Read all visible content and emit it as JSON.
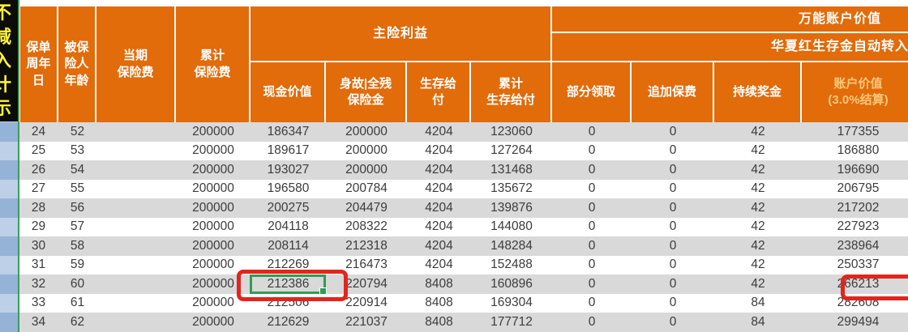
{
  "app": {
    "type": "insurance-benefit-projection-spreadsheet"
  },
  "left_strip": {
    "vertical_text": [
      "不",
      "减",
      "入",
      "计",
      "示"
    ]
  },
  "header": {
    "policy_year": "保单\n周年\n日",
    "insured_age": "被保\n险人\n年龄",
    "current_premium": "当期\n保险费",
    "cumulative_premium": "累计\n保险费",
    "main_benefit_group": "主险利益",
    "cash_value": "现金价值",
    "death_benefit": "身故|全残\n保险金",
    "survival_benefit": "生存给\n付",
    "cumulative_survival": "累计\n生存给付",
    "universal_group": "万能账户价值",
    "universal_sub": "华夏红生存金自动转入",
    "partial_withdrawal": "部分领取",
    "additional_premium": "追加保费",
    "persistency_bonus": "持续奖金",
    "account_value": "账户价值\n(3.0%结算)"
  },
  "table": {
    "columns": [
      "保单周年日",
      "被保险人年龄",
      "当期保险费",
      "累计保险费",
      "现金价值",
      "身故|全残保险金",
      "生存给付",
      "累计生存给付",
      "部分领取",
      "追加保费",
      "持续奖金",
      "账户价值(3.0%结算)"
    ],
    "rows": [
      [
        "24",
        "52",
        "",
        "200000",
        "186347",
        "200000",
        "4204",
        "123060",
        "0",
        "0",
        "42",
        "177355"
      ],
      [
        "25",
        "53",
        "",
        "200000",
        "189617",
        "200000",
        "4204",
        "127264",
        "0",
        "0",
        "42",
        "186880"
      ],
      [
        "26",
        "54",
        "",
        "200000",
        "193027",
        "200000",
        "4204",
        "131468",
        "0",
        "0",
        "42",
        "196690"
      ],
      [
        "27",
        "55",
        "",
        "200000",
        "196580",
        "200784",
        "4204",
        "135672",
        "0",
        "0",
        "42",
        "206795"
      ],
      [
        "28",
        "56",
        "",
        "200000",
        "200275",
        "204479",
        "4204",
        "139876",
        "0",
        "0",
        "42",
        "217202"
      ],
      [
        "29",
        "57",
        "",
        "200000",
        "204118",
        "208322",
        "4204",
        "144080",
        "0",
        "0",
        "42",
        "227923"
      ],
      [
        "30",
        "58",
        "",
        "200000",
        "208114",
        "212318",
        "4204",
        "148284",
        "0",
        "0",
        "42",
        "238964"
      ],
      [
        "31",
        "59",
        "",
        "200000",
        "212269",
        "216473",
        "4204",
        "152488",
        "0",
        "0",
        "42",
        "250337"
      ],
      [
        "32",
        "60",
        "",
        "200000",
        "212386",
        "220794",
        "8408",
        "160896",
        "0",
        "0",
        "42",
        "266213"
      ],
      [
        "33",
        "61",
        "",
        "200000",
        "212506",
        "220914",
        "8408",
        "169304",
        "0",
        "0",
        "84",
        "282608"
      ],
      [
        "34",
        "62",
        "",
        "200000",
        "212629",
        "221037",
        "8408",
        "177712",
        "0",
        "0",
        "84",
        "299494"
      ]
    ]
  },
  "annotations": {
    "selected_cell_value": "212386",
    "red_boxed_values": [
      "212386",
      "266213"
    ]
  },
  "colors": {
    "header_orange": "#E26B0A",
    "header_text": "#FFFFFF",
    "account_value_header_text": "#FFC87A",
    "row_stripe_gray": "#D9D9D9",
    "row_stripe_white": "#FFFFFF",
    "left_col_blue_dark": "#95B3D7",
    "left_col_blue_light": "#BDD0E7",
    "selection_green": "#2F9E52",
    "annotation_red": "#E2251D",
    "strip_yellow_text": "#FCF23A",
    "strip_black_bg": "#0B0B07",
    "data_text": "#3C3C3C"
  }
}
